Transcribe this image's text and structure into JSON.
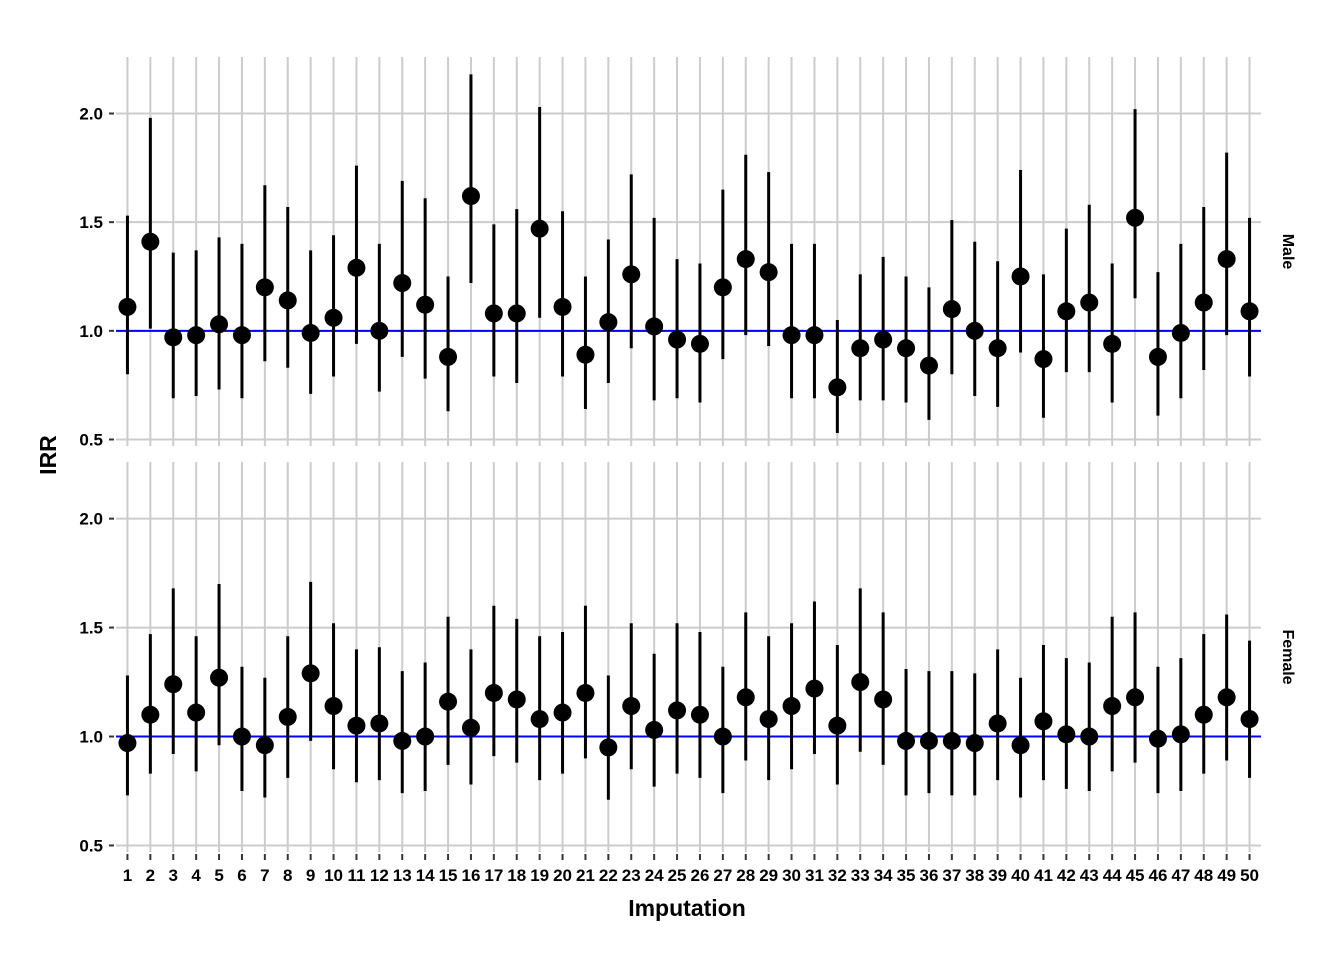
{
  "chart_data": {
    "type": "scatter",
    "subtype": "point-range (estimate with interval), faceted",
    "xlabel": "Imputation",
    "ylabel": "IRR",
    "x": [
      1,
      2,
      3,
      4,
      5,
      6,
      7,
      8,
      9,
      10,
      11,
      12,
      13,
      14,
      15,
      16,
      17,
      18,
      19,
      20,
      21,
      22,
      23,
      24,
      25,
      26,
      27,
      28,
      29,
      30,
      31,
      32,
      33,
      34,
      35,
      36,
      37,
      38,
      39,
      40,
      41,
      42,
      43,
      44,
      45,
      46,
      47,
      48,
      49,
      50
    ],
    "x_tick_labels": [
      "1",
      "2",
      "3",
      "4",
      "5",
      "6",
      "7",
      "8",
      "9",
      "10",
      "11",
      "12",
      "13",
      "14",
      "15",
      "16",
      "17",
      "18",
      "19",
      "20",
      "21",
      "22",
      "23",
      "24",
      "25",
      "26",
      "27",
      "28",
      "29",
      "30",
      "31",
      "32",
      "33",
      "34",
      "35",
      "36",
      "37",
      "38",
      "39",
      "40",
      "41",
      "42",
      "43",
      "44",
      "45",
      "46",
      "47",
      "48",
      "49",
      "50"
    ],
    "ylim": [
      0.47,
      2.26
    ],
    "y_ticks": [
      0.5,
      1.0,
      1.5,
      2.0
    ],
    "y_tick_labels": [
      "0.5",
      "1.0",
      "1.5",
      "2.0"
    ],
    "reference_line": {
      "y": 1.0,
      "color": "#0000ff"
    },
    "grid": true,
    "colors": {
      "point": "#000000",
      "interval": "#000000",
      "grid": "#cccccc",
      "reference": "#0000ff"
    },
    "panels": [
      {
        "strip_label": "Male",
        "estimate": [
          1.11,
          1.41,
          0.97,
          0.98,
          1.03,
          0.98,
          1.2,
          1.14,
          0.99,
          1.06,
          1.29,
          1.0,
          1.22,
          1.12,
          0.88,
          1.62,
          1.08,
          1.08,
          1.47,
          1.11,
          0.89,
          1.04,
          1.26,
          1.02,
          0.96,
          0.94,
          1.2,
          1.33,
          1.27,
          0.98,
          0.98,
          0.74,
          0.92,
          0.96,
          0.92,
          0.84,
          1.1,
          1.0,
          0.92,
          1.25,
          0.87,
          1.09,
          1.13,
          0.94,
          1.52,
          0.88,
          0.99,
          1.13,
          1.33,
          1.09
        ],
        "lower": [
          0.8,
          1.01,
          0.69,
          0.7,
          0.73,
          0.69,
          0.86,
          0.83,
          0.71,
          0.79,
          0.94,
          0.72,
          0.88,
          0.78,
          0.63,
          1.22,
          0.79,
          0.76,
          1.06,
          0.79,
          0.64,
          0.76,
          0.92,
          0.68,
          0.69,
          0.67,
          0.87,
          0.98,
          0.93,
          0.69,
          0.69,
          0.53,
          0.68,
          0.68,
          0.67,
          0.59,
          0.8,
          0.7,
          0.65,
          0.9,
          0.6,
          0.81,
          0.81,
          0.67,
          1.15,
          0.61,
          0.69,
          0.82,
          0.98,
          0.79
        ],
        "upper": [
          1.53,
          1.98,
          1.36,
          1.37,
          1.43,
          1.4,
          1.67,
          1.57,
          1.37,
          1.44,
          1.76,
          1.4,
          1.69,
          1.61,
          1.25,
          2.18,
          1.49,
          1.56,
          2.03,
          1.55,
          1.25,
          1.42,
          1.72,
          1.52,
          1.33,
          1.31,
          1.65,
          1.81,
          1.73,
          1.4,
          1.4,
          1.05,
          1.26,
          1.34,
          1.25,
          1.2,
          1.51,
          1.41,
          1.32,
          1.74,
          1.26,
          1.47,
          1.58,
          1.31,
          2.02,
          1.27,
          1.4,
          1.57,
          1.82,
          1.52
        ]
      },
      {
        "strip_label": "Female",
        "estimate": [
          0.97,
          1.1,
          1.24,
          1.11,
          1.27,
          1.0,
          0.96,
          1.09,
          1.29,
          1.14,
          1.05,
          1.06,
          0.98,
          1.0,
          1.16,
          1.04,
          1.2,
          1.17,
          1.08,
          1.11,
          1.2,
          0.95,
          1.14,
          1.03,
          1.12,
          1.1,
          1.0,
          1.18,
          1.08,
          1.14,
          1.22,
          1.05,
          1.25,
          1.17,
          0.98,
          0.98,
          0.98,
          0.97,
          1.06,
          0.96,
          1.07,
          1.01,
          1.0,
          1.14,
          1.18,
          0.99,
          1.01,
          1.1,
          1.18,
          1.08
        ],
        "lower": [
          0.73,
          0.83,
          0.92,
          0.84,
          0.96,
          0.75,
          0.72,
          0.81,
          0.98,
          0.85,
          0.79,
          0.8,
          0.74,
          0.75,
          0.87,
          0.78,
          0.91,
          0.88,
          0.8,
          0.83,
          0.9,
          0.71,
          0.85,
          0.77,
          0.83,
          0.81,
          0.74,
          0.89,
          0.8,
          0.85,
          0.92,
          0.78,
          0.93,
          0.87,
          0.73,
          0.74,
          0.73,
          0.73,
          0.8,
          0.72,
          0.8,
          0.76,
          0.75,
          0.84,
          0.88,
          0.74,
          0.75,
          0.83,
          0.89,
          0.81
        ],
        "upper": [
          1.28,
          1.47,
          1.68,
          1.46,
          1.7,
          1.32,
          1.27,
          1.46,
          1.71,
          1.52,
          1.4,
          1.41,
          1.3,
          1.34,
          1.55,
          1.4,
          1.6,
          1.54,
          1.46,
          1.48,
          1.6,
          1.28,
          1.52,
          1.38,
          1.52,
          1.48,
          1.32,
          1.57,
          1.46,
          1.52,
          1.62,
          1.42,
          1.68,
          1.57,
          1.31,
          1.3,
          1.3,
          1.29,
          1.4,
          1.27,
          1.42,
          1.36,
          1.34,
          1.55,
          1.57,
          1.32,
          1.36,
          1.47,
          1.56,
          1.44
        ]
      }
    ]
  }
}
